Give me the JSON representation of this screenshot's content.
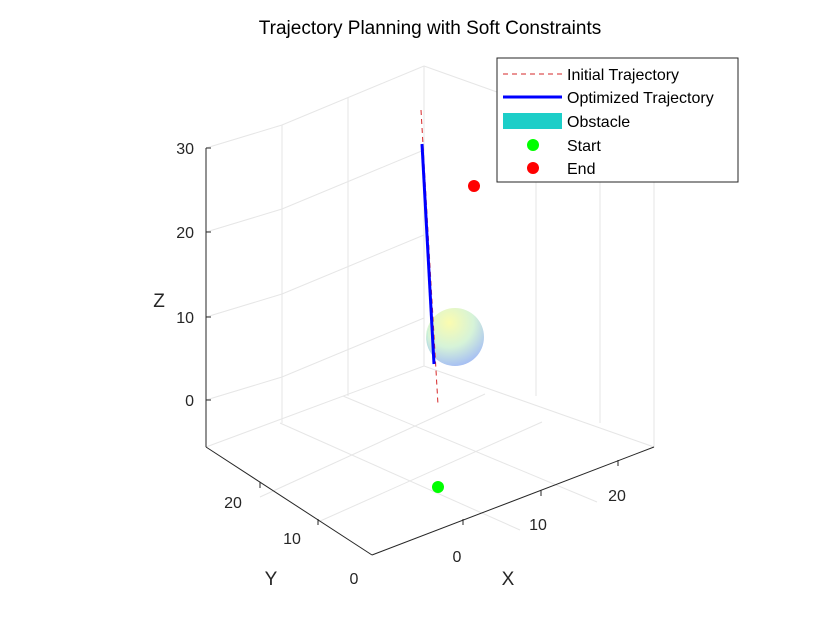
{
  "chart_data": {
    "type": "line3d",
    "title": "Trajectory Planning with Soft Constraints",
    "xlabel": "X",
    "ylabel": "Y",
    "zlabel": "Z",
    "xlim": [
      -5,
      28
    ],
    "ylim": [
      -2,
      28
    ],
    "zlim": [
      -5,
      32
    ],
    "xticks": [
      "0",
      "10",
      "20"
    ],
    "yticks": [
      "0",
      "10",
      "20"
    ],
    "zticks": [
      "0",
      "10",
      "20",
      "30"
    ],
    "grid": true,
    "legend_position": "top-right",
    "legend": [
      {
        "label": "Initial Trajectory",
        "style": "dashed-line",
        "color": "#d62728"
      },
      {
        "label": "Optimized Trajectory",
        "style": "solid-line",
        "color": "#0000ff"
      },
      {
        "label": "Obstacle",
        "style": "patch",
        "color": "#1ccec8"
      },
      {
        "label": "Start",
        "style": "marker",
        "color": "#00ff00"
      },
      {
        "label": "End",
        "style": "marker",
        "color": "#ff0000"
      }
    ],
    "series": [
      {
        "name": "Initial Trajectory",
        "x": [
          0,
          14
        ],
        "y": [
          0,
          14
        ],
        "z": [
          -5,
          32
        ]
      },
      {
        "name": "Optimized Trajectory",
        "x": [
          3.5,
          7,
          10.5,
          13.2
        ],
        "y": [
          3.5,
          7,
          10.5,
          13.2
        ],
        "z": [
          3,
          12,
          21,
          30
        ]
      }
    ],
    "points": [
      {
        "name": "Start",
        "x": 0,
        "y": 0,
        "z": 0
      },
      {
        "name": "End",
        "x": 20,
        "y": 20,
        "z": 20
      }
    ],
    "obstacle": {
      "type": "sphere",
      "center": [
        7,
        5,
        5
      ],
      "radius": 3
    }
  }
}
